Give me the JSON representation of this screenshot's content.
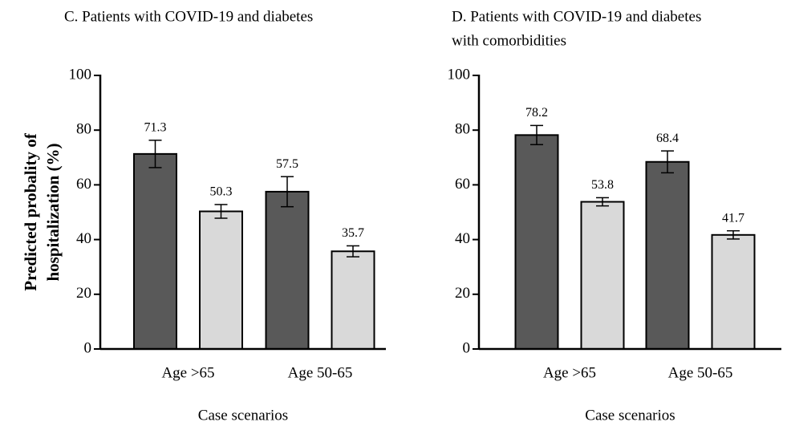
{
  "chart_data": [
    {
      "type": "bar",
      "title": [
        "C. Patients with COVID-19 and diabetes"
      ],
      "ylabel": [
        "Predicted probality of",
        "hospitalization (%)"
      ],
      "xlabel": "Case scenarios",
      "categories": [
        "Age >65",
        "Age 50-65"
      ],
      "series": [
        {
          "color": "#595959",
          "values": [
            71.3,
            57.5
          ],
          "errors": [
            5,
            5.5
          ]
        },
        {
          "color": "#d9d9d9",
          "values": [
            50.3,
            35.7
          ],
          "errors": [
            2.5,
            2
          ]
        }
      ],
      "ylim": [
        0,
        100
      ],
      "yticks": [
        0,
        20,
        40,
        60,
        80,
        100
      ]
    },
    {
      "type": "bar",
      "title": [
        "D. Patients with COVID-19 and diabetes",
        "with comorbidities"
      ],
      "xlabel": "Case scenarios",
      "categories": [
        "Age >65",
        "Age 50-65"
      ],
      "series": [
        {
          "color": "#595959",
          "values": [
            78.2,
            68.4
          ],
          "errors": [
            3.5,
            4
          ]
        },
        {
          "color": "#d9d9d9",
          "values": [
            53.8,
            41.7
          ],
          "errors": [
            1.5,
            1.5
          ]
        }
      ],
      "ylim": [
        0,
        100
      ],
      "yticks": [
        0,
        20,
        40,
        60,
        80,
        100
      ]
    }
  ]
}
